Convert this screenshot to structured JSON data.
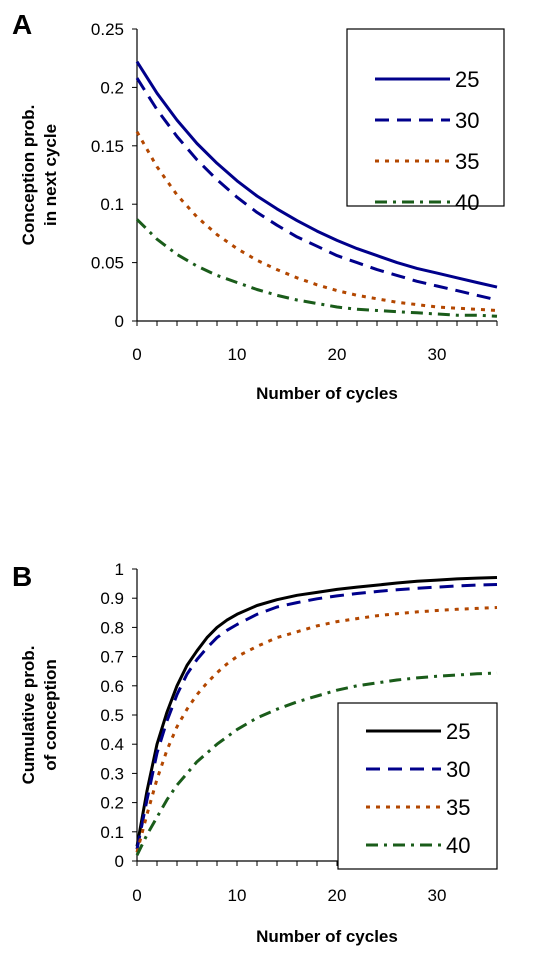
{
  "chart_data": [
    {
      "panel": "A",
      "type": "line",
      "xlabel": "Number of cycles",
      "ylabel": [
        "Conception prob.",
        "in next cycle"
      ],
      "xlim": [
        0,
        36
      ],
      "ylim": [
        0,
        0.25
      ],
      "xticks": [
        0,
        10,
        20,
        30
      ],
      "yticks": [
        0,
        0.05,
        0.1,
        0.15,
        0.2,
        0.25
      ],
      "ytick_labels": [
        "0",
        "0.05",
        "0.1",
        "0.15",
        "0.2",
        "0.25"
      ],
      "x": [
        0,
        2,
        4,
        6,
        8,
        10,
        12,
        14,
        16,
        18,
        20,
        22,
        24,
        26,
        28,
        30,
        32,
        34,
        36
      ],
      "series": [
        {
          "name": "25",
          "color": "#00008b",
          "dash": "solid",
          "values": [
            0.222,
            0.195,
            0.172,
            0.152,
            0.135,
            0.12,
            0.107,
            0.096,
            0.086,
            0.077,
            0.069,
            0.062,
            0.056,
            0.05,
            0.045,
            0.041,
            0.037,
            0.033,
            0.029
          ]
        },
        {
          "name": "30",
          "color": "#00008b",
          "dash": "dash",
          "values": [
            0.208,
            0.181,
            0.158,
            0.138,
            0.121,
            0.106,
            0.093,
            0.082,
            0.072,
            0.064,
            0.056,
            0.05,
            0.044,
            0.039,
            0.034,
            0.03,
            0.026,
            0.022,
            0.018
          ]
        },
        {
          "name": "35",
          "color": "#b34700",
          "dash": "dot",
          "values": [
            0.162,
            0.132,
            0.108,
            0.089,
            0.074,
            0.062,
            0.052,
            0.044,
            0.037,
            0.031,
            0.026,
            0.022,
            0.019,
            0.016,
            0.014,
            0.012,
            0.011,
            0.01,
            0.009
          ]
        },
        {
          "name": "40",
          "color": "#1a5c1a",
          "dash": "dashdot",
          "values": [
            0.087,
            0.07,
            0.057,
            0.047,
            0.039,
            0.033,
            0.027,
            0.022,
            0.018,
            0.015,
            0.012,
            0.01,
            0.009,
            0.008,
            0.007,
            0.006,
            0.005,
            0.005,
            0.004
          ]
        }
      ]
    },
    {
      "panel": "B",
      "type": "line",
      "xlabel": "Number of cycles",
      "ylabel": [
        "Cumulative prob.",
        "of conception"
      ],
      "xlim": [
        0,
        36
      ],
      "ylim": [
        0,
        1
      ],
      "xticks": [
        0,
        10,
        20,
        30
      ],
      "yticks": [
        0,
        0.1,
        0.2,
        0.3,
        0.4,
        0.5,
        0.6,
        0.7,
        0.8,
        0.9,
        1
      ],
      "ytick_labels": [
        "0",
        "0.1",
        "0.2",
        "0.3",
        "0.4",
        "0.5",
        "0.6",
        "0.7",
        "0.8",
        "0.9",
        "1"
      ],
      "x": [
        0,
        1,
        2,
        3,
        4,
        5,
        6,
        7,
        8,
        9,
        10,
        12,
        14,
        16,
        18,
        20,
        22,
        24,
        26,
        28,
        30,
        32,
        34,
        36
      ],
      "series": [
        {
          "name": "25",
          "color": "#000000",
          "dash": "solid",
          "values": [
            0.05,
            0.24,
            0.4,
            0.51,
            0.6,
            0.67,
            0.72,
            0.765,
            0.8,
            0.825,
            0.845,
            0.875,
            0.895,
            0.91,
            0.92,
            0.93,
            0.938,
            0.945,
            0.952,
            0.958,
            0.962,
            0.966,
            0.969,
            0.971
          ]
        },
        {
          "name": "30",
          "color": "#00008b",
          "dash": "dash",
          "values": [
            0.04,
            0.21,
            0.37,
            0.48,
            0.57,
            0.64,
            0.69,
            0.73,
            0.765,
            0.79,
            0.81,
            0.845,
            0.87,
            0.885,
            0.898,
            0.908,
            0.916,
            0.923,
            0.929,
            0.934,
            0.938,
            0.942,
            0.945,
            0.947
          ]
        },
        {
          "name": "35",
          "color": "#b34700",
          "dash": "dot",
          "values": [
            0.03,
            0.16,
            0.28,
            0.38,
            0.46,
            0.52,
            0.57,
            0.61,
            0.645,
            0.675,
            0.7,
            0.735,
            0.765,
            0.785,
            0.805,
            0.82,
            0.83,
            0.84,
            0.847,
            0.853,
            0.858,
            0.862,
            0.865,
            0.868
          ]
        },
        {
          "name": "40",
          "color": "#1a5c1a",
          "dash": "dashdot",
          "values": [
            0.02,
            0.09,
            0.15,
            0.21,
            0.26,
            0.3,
            0.34,
            0.37,
            0.4,
            0.425,
            0.45,
            0.49,
            0.52,
            0.545,
            0.565,
            0.585,
            0.6,
            0.61,
            0.62,
            0.627,
            0.633,
            0.637,
            0.641,
            0.644
          ]
        }
      ]
    }
  ]
}
